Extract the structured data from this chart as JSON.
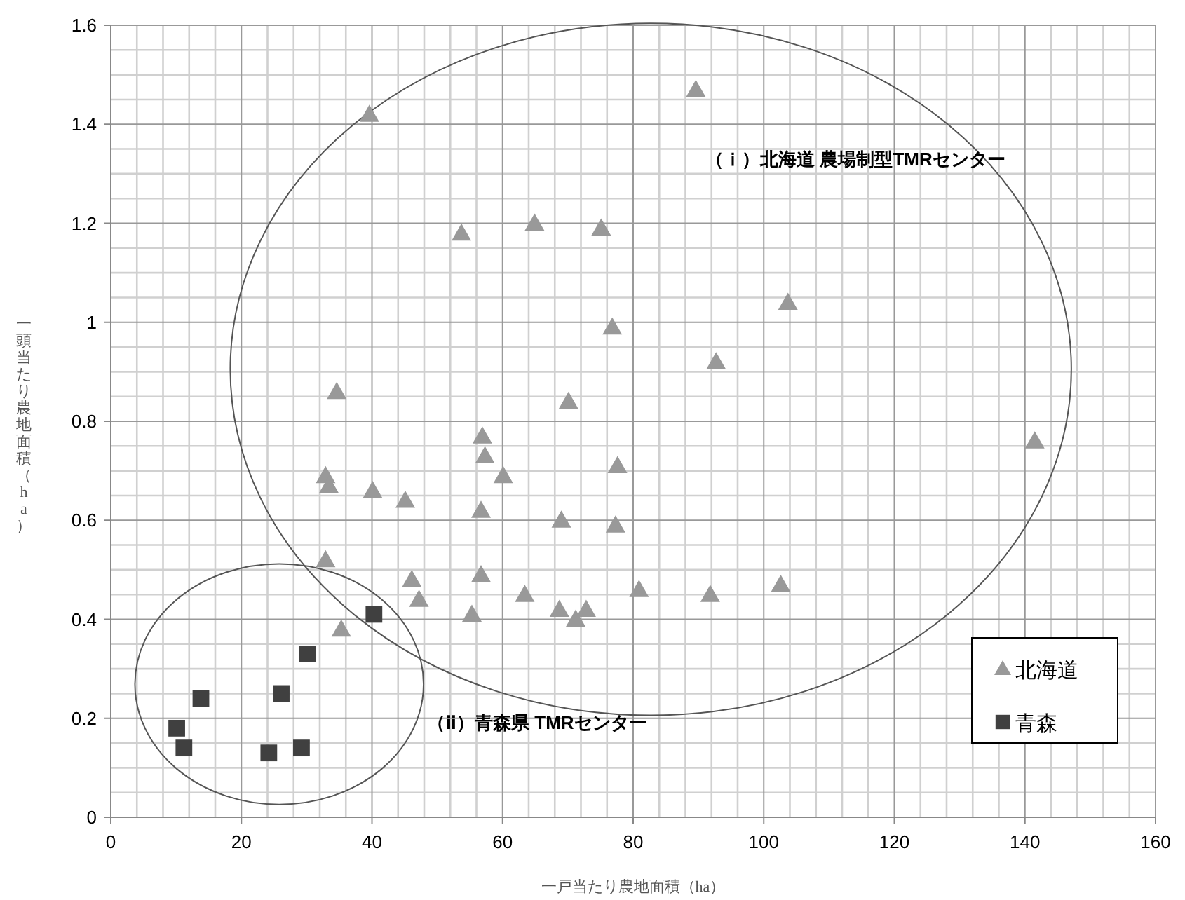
{
  "chart_data": {
    "type": "scatter",
    "xlabel": "一戸当たり農地面積（ha）",
    "ylabel": "一頭当たり農地面積（ha）",
    "xlim": [
      0,
      160
    ],
    "xticks": [
      0,
      20,
      40,
      60,
      80,
      100,
      120,
      140,
      160
    ],
    "ylim": [
      0,
      1.6
    ],
    "yticks": [
      0,
      0.2,
      0.4,
      0.6,
      0.8,
      {
        "value": 1,
        "label": "1"
      },
      1.2,
      1.4,
      1.6
    ],
    "grid": true,
    "legend": "bottom right",
    "annotations": [
      "（ｉ）北海道 農場制型TMRセンター",
      "（ⅱ）青森県 TMRセンター"
    ],
    "series": [
      {
        "name": "北海道",
        "color": "#999999",
        "marker": "triangle",
        "x": [
          39.6,
          53.7,
          64.9,
          75.1,
          89.6,
          103.7,
          76.8,
          92.7,
          34.6,
          70.1,
          56.9,
          57.3,
          60.1,
          77.6,
          141.5,
          32.9,
          33.4,
          40.1,
          45.1,
          56.7,
          69.0,
          77.3,
          32.9,
          46.1,
          56.7,
          47.2,
          63.4,
          80.9,
          55.3,
          68.7,
          72.8,
          71.2,
          35.3,
          91.8,
          102.6
        ],
        "values": [
          1.42,
          1.18,
          1.2,
          1.19,
          1.47,
          1.04,
          0.99,
          0.92,
          0.86,
          0.84,
          0.77,
          0.73,
          0.69,
          0.71,
          0.76,
          0.69,
          0.67,
          0.66,
          0.64,
          0.62,
          0.6,
          0.59,
          0.52,
          0.48,
          0.49,
          0.44,
          0.45,
          0.46,
          0.41,
          0.42,
          0.42,
          0.4,
          0.38,
          0.45,
          0.47
        ]
      },
      {
        "name": "青森",
        "color": "#404040",
        "marker": "square",
        "x": [
          40.3,
          30.1,
          13.8,
          26.1,
          10.1,
          11.2,
          24.2,
          29.2
        ],
        "values": [
          0.41,
          0.33,
          0.24,
          0.25,
          0.18,
          0.14,
          0.13,
          0.14
        ]
      }
    ]
  }
}
